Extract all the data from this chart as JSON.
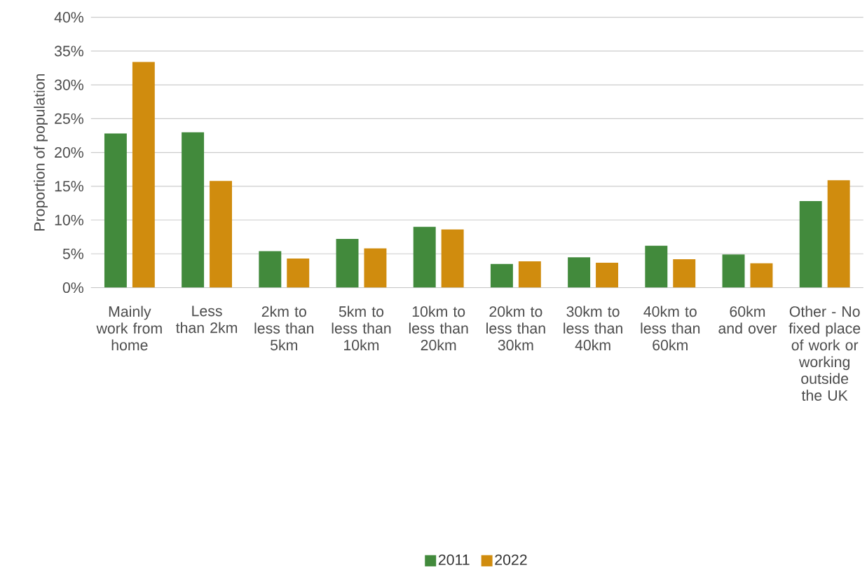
{
  "chart_data": {
    "type": "bar",
    "ylabel": "Proportion of population",
    "categories": [
      "Mainly work from home",
      "Less than 2km",
      "2km to less than 5km",
      "5km to less than 10km",
      "10km to less than 20km",
      "20km to less than 30km",
      "30km to less than 40km",
      "40km to less than 60km",
      "60km and over",
      "Other - No fixed place of work or working outside the UK"
    ],
    "series": [
      {
        "name": "2011",
        "color": "#428a3c",
        "values": [
          22.8,
          23.0,
          5.4,
          7.2,
          9.0,
          3.5,
          4.5,
          6.2,
          4.9,
          12.8
        ]
      },
      {
        "name": "2022",
        "color": "#d08c0e",
        "values": [
          33.4,
          15.8,
          4.3,
          5.8,
          8.6,
          3.9,
          3.7,
          4.2,
          3.6,
          15.9
        ]
      }
    ],
    "ylim": [
      0,
      40
    ],
    "yticks": [
      {
        "value": 0,
        "label": "0%"
      },
      {
        "value": 5,
        "label": "5%"
      },
      {
        "value": 10,
        "label": "10%"
      },
      {
        "value": 15,
        "label": "15%"
      },
      {
        "value": 20,
        "label": "20%"
      },
      {
        "value": 25,
        "label": "25%"
      },
      {
        "value": 30,
        "label": "30%"
      },
      {
        "value": 35,
        "label": "35%"
      },
      {
        "value": 40,
        "label": "40%"
      }
    ],
    "grid": "y",
    "legend": "bottom"
  }
}
